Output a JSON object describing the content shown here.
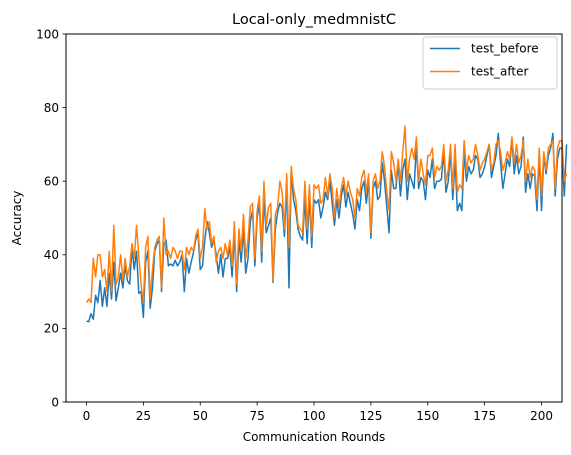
{
  "chart_data": {
    "type": "line",
    "title": "Local-only_medmnistC",
    "xlabel": "Communication Rounds",
    "ylabel": "Accuracy",
    "xlim": [
      -9,
      209
    ],
    "ylim": [
      0,
      100
    ],
    "xticks": [
      0,
      25,
      50,
      75,
      100,
      125,
      150,
      175,
      200
    ],
    "yticks": [
      0,
      20,
      40,
      60,
      80,
      100
    ],
    "grid": false,
    "legend_position": "upper right",
    "series": [
      {
        "name": "test_before",
        "color": "#1f77b4",
        "values": [
          22,
          21.8,
          24,
          22.5,
          29,
          27,
          33,
          26,
          31,
          26,
          35,
          28,
          38,
          27.5,
          31,
          35,
          31,
          37,
          33,
          32,
          42,
          36,
          41,
          29.5,
          30,
          23,
          38,
          41,
          25.5,
          31,
          41,
          43,
          44,
          30,
          43,
          44,
          37,
          37.5,
          37,
          38.5,
          37,
          38,
          40,
          30,
          39,
          35,
          38,
          40.5,
          44,
          46,
          36,
          37,
          44,
          49,
          46,
          42,
          44,
          40,
          35,
          40,
          34,
          39,
          39,
          42,
          34,
          46,
          30,
          44,
          38,
          47,
          35,
          39,
          49,
          52,
          37,
          50,
          54,
          38,
          55,
          46,
          48,
          50,
          32.5,
          47,
          51.5,
          54,
          53,
          45,
          59,
          31,
          63,
          55,
          52,
          47,
          45,
          44,
          55,
          43,
          56,
          42,
          55,
          54,
          55,
          50,
          53,
          57,
          55,
          60,
          54,
          48,
          55,
          50,
          56,
          59,
          53,
          57,
          54,
          51,
          47,
          55,
          52,
          58,
          60,
          54,
          60,
          44.5,
          58,
          60,
          55,
          56,
          65,
          60,
          53,
          46,
          63,
          58,
          58,
          65,
          56,
          63,
          66,
          55,
          62,
          60,
          58,
          70,
          58,
          61,
          60,
          55,
          63,
          61,
          66,
          58,
          60,
          60,
          60.5,
          68,
          57,
          60,
          68,
          55,
          66,
          52,
          54,
          52,
          68,
          60,
          64,
          62,
          63,
          67,
          66,
          61,
          62,
          64,
          67,
          70,
          61,
          64,
          67,
          73,
          65,
          58,
          62,
          66,
          64,
          71.5,
          62,
          67,
          62,
          64,
          72,
          57,
          62,
          58,
          62,
          61.5,
          52,
          67,
          52,
          67,
          62,
          67,
          69,
          73,
          56,
          66,
          69,
          69,
          56,
          70
        ]
      },
      {
        "name": "test_after",
        "color": "#ff7f0e",
        "values": [
          27,
          28,
          27,
          39,
          34,
          40,
          40,
          34,
          36,
          30,
          41,
          30,
          48,
          32,
          34,
          40,
          33,
          39,
          34,
          37,
          43,
          39,
          48,
          39.5,
          32,
          27,
          42,
          45,
          28,
          36,
          42,
          44,
          45,
          31,
          50,
          40,
          41,
          39,
          42,
          41,
          39,
          41,
          41,
          36,
          42,
          40,
          42,
          41,
          45,
          47,
          39,
          42,
          52.5,
          47,
          49,
          43,
          45,
          38,
          41,
          42,
          39,
          43,
          40,
          44,
          37,
          49,
          32,
          47,
          41,
          51,
          39,
          44,
          53,
          54,
          39,
          52,
          56,
          41,
          60,
          48,
          53,
          54,
          33,
          51,
          53,
          60,
          57,
          47,
          62,
          42,
          64,
          58,
          55,
          48,
          47,
          46,
          60,
          47,
          59,
          45,
          59,
          58,
          59,
          54,
          55,
          61,
          56,
          62,
          58,
          50,
          58,
          53,
          58,
          61,
          56,
          60,
          57,
          55,
          50,
          58,
          56,
          61,
          63,
          57,
          62,
          46,
          60,
          62,
          58,
          60,
          68,
          64,
          57,
          52,
          68,
          65,
          60,
          66,
          60,
          68,
          75,
          60,
          66,
          69,
          66,
          72,
          60,
          66,
          62,
          59,
          67,
          67,
          69,
          61,
          64,
          63,
          64,
          70,
          60,
          63,
          70,
          58,
          70,
          57,
          59,
          58,
          71,
          63,
          67,
          65,
          66,
          70,
          67,
          63,
          65,
          66,
          68,
          70,
          63,
          65,
          70,
          71,
          68,
          63,
          65,
          68,
          66,
          72,
          65,
          70,
          65,
          67,
          71,
          60,
          66,
          61,
          64,
          63,
          55,
          69,
          56,
          68,
          63,
          69,
          70,
          71,
          58,
          69,
          71,
          71,
          60,
          62
        ]
      }
    ]
  }
}
